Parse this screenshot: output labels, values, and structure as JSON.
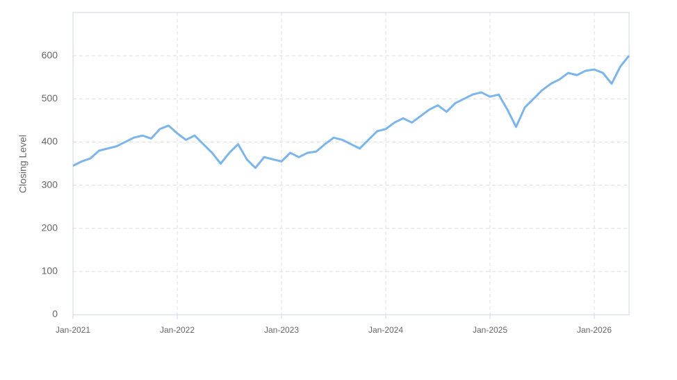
{
  "chart_data": {
    "type": "line",
    "y_label": "Closing Level",
    "x": [
      "2021-01",
      "2021-02",
      "2021-03",
      "2021-04",
      "2021-05",
      "2021-06",
      "2021-07",
      "2021-08",
      "2021-09",
      "2021-10",
      "2021-11",
      "2021-12",
      "2022-01",
      "2022-02",
      "2022-03",
      "2022-04",
      "2022-05",
      "2022-06",
      "2022-07",
      "2022-08",
      "2022-09",
      "2022-10",
      "2022-11",
      "2022-12",
      "2023-01",
      "2023-02",
      "2023-03",
      "2023-04",
      "2023-05",
      "2023-06",
      "2023-07",
      "2023-08",
      "2023-09",
      "2023-10",
      "2023-11",
      "2023-12",
      "2024-01",
      "2024-02",
      "2024-03",
      "2024-04",
      "2024-05",
      "2024-06",
      "2024-07",
      "2024-08",
      "2024-09",
      "2024-10",
      "2024-11",
      "2024-12",
      "2025-01",
      "2025-02",
      "2025-03",
      "2025-04",
      "2025-05",
      "2025-06",
      "2025-07",
      "2025-08",
      "2025-09",
      "2025-10",
      "2025-11",
      "2025-12",
      "2026-01",
      "2026-02",
      "2026-03",
      "2026-04",
      "2026-05"
    ],
    "series": [
      {
        "color": "#7cb5ec",
        "values": [
          345,
          355,
          362,
          380,
          385,
          390,
          400,
          410,
          415,
          408,
          430,
          438,
          420,
          405,
          415,
          395,
          375,
          350,
          375,
          395,
          360,
          340,
          365,
          360,
          355,
          375,
          365,
          375,
          378,
          395,
          410,
          405,
          395,
          385,
          405,
          425,
          430,
          445,
          455,
          445,
          460,
          475,
          485,
          470,
          490,
          500,
          510,
          515,
          505,
          510,
          475,
          435,
          480,
          500,
          520,
          535,
          545,
          560,
          555,
          565,
          568,
          560,
          535,
          575,
          600
        ]
      }
    ],
    "xlim": [
      "2021-01",
      "2026-05"
    ],
    "xticks": [
      {
        "value": "2021-01",
        "label": "Jan-2021"
      },
      {
        "value": "2022-01",
        "label": "Jan-2022"
      },
      {
        "value": "2023-01",
        "label": "Jan-2023"
      },
      {
        "value": "2024-01",
        "label": "Jan-2024"
      },
      {
        "value": "2025-01",
        "label": "Jan-2025"
      },
      {
        "value": "2026-01",
        "label": "Jan-2026"
      }
    ],
    "ylim": [
      0,
      700
    ],
    "yticks": [
      0,
      100,
      200,
      300,
      400,
      500,
      600
    ],
    "grid": true
  }
}
